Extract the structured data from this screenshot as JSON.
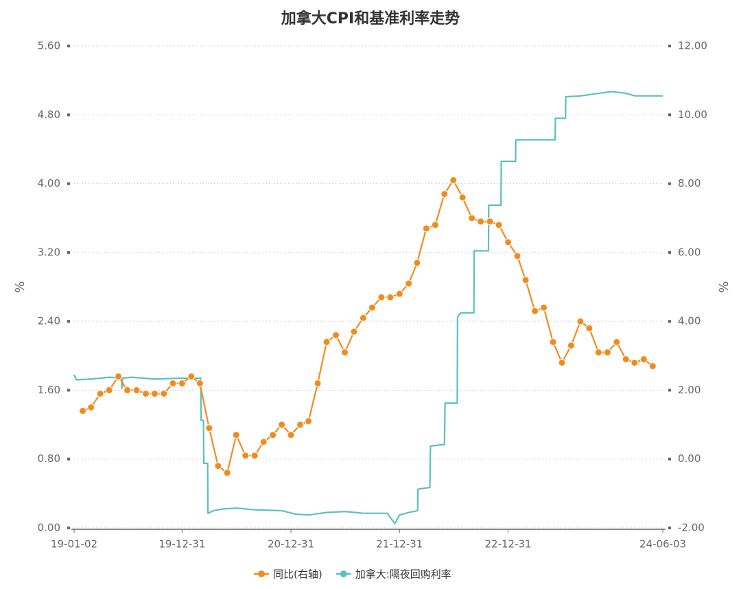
{
  "chart_data": {
    "type": "line",
    "title": "加拿大CPI和基准利率走势",
    "y_label": "%",
    "y2_label": "%",
    "xlim": [
      "19-01-02",
      "24-06-03"
    ],
    "xticks": [
      "19-01-02",
      "19-12-31",
      "20-12-31",
      "21-12-31",
      "22-12-31",
      "24-06-03"
    ],
    "ylim": [
      0,
      5.6
    ],
    "yticks": [
      {
        "value": 0,
        "label": "0.00"
      },
      {
        "value": 0.8,
        "label": "0.80"
      },
      {
        "value": 1.6,
        "label": "1.60"
      },
      {
        "value": 2.4,
        "label": "2.40"
      },
      {
        "value": 3.2,
        "label": "3.20"
      },
      {
        "value": 4,
        "label": "4.00"
      },
      {
        "value": 4.8,
        "label": "4.80"
      },
      {
        "value": 5.6,
        "label": "5.60"
      }
    ],
    "y2lim": [
      -2,
      12
    ],
    "y2ticks": [
      {
        "value": -2,
        "label": "-2.00"
      },
      {
        "value": 0,
        "label": "0.00"
      },
      {
        "value": 2,
        "label": "2.00"
      },
      {
        "value": 4,
        "label": "4.00"
      },
      {
        "value": 6,
        "label": "6.00"
      },
      {
        "value": 8,
        "label": "8.00"
      },
      {
        "value": 10,
        "label": "10.00"
      },
      {
        "value": 12,
        "label": "12.00"
      }
    ],
    "grid": true,
    "legend": "bottom",
    "series": [
      {
        "name": "同比(右轴)",
        "color": "#f08c1e",
        "axis": "y2",
        "markers": true,
        "x": [
          "19-01-31",
          "19-02-28",
          "19-03-31",
          "19-04-30",
          "19-05-31",
          "19-06-30",
          "19-07-31",
          "19-08-31",
          "19-09-30",
          "19-10-31",
          "19-11-30",
          "19-12-31",
          "20-01-31",
          "20-02-29",
          "20-03-31",
          "20-04-30",
          "20-05-31",
          "20-06-30",
          "20-07-31",
          "20-08-31",
          "20-09-30",
          "20-10-31",
          "20-11-30",
          "20-12-31",
          "21-01-31",
          "21-02-28",
          "21-03-31",
          "21-04-30",
          "21-05-31",
          "21-06-30",
          "21-07-31",
          "21-08-31",
          "21-09-30",
          "21-10-31",
          "21-11-30",
          "21-12-31",
          "22-01-31",
          "22-02-28",
          "22-03-31",
          "22-04-30",
          "22-05-31",
          "22-06-30",
          "22-07-31",
          "22-08-31",
          "22-09-30",
          "22-10-31",
          "22-11-30",
          "22-12-31",
          "23-01-31",
          "23-02-28",
          "23-03-31",
          "23-04-30",
          "23-05-31",
          "23-06-30",
          "23-07-31",
          "23-08-31",
          "23-09-30",
          "23-10-31",
          "23-11-30",
          "23-12-31",
          "24-01-31",
          "24-02-29",
          "24-03-31",
          "24-04-30"
        ],
        "values": [
          1.4,
          1.5,
          1.9,
          2.0,
          2.4,
          2.0,
          2.0,
          1.9,
          1.9,
          1.9,
          2.2,
          2.2,
          2.4,
          2.2,
          0.9,
          -0.2,
          -0.4,
          0.7,
          0.1,
          0.1,
          0.5,
          0.7,
          1.0,
          0.7,
          1.0,
          1.1,
          2.2,
          3.4,
          3.6,
          3.1,
          3.7,
          4.1,
          4.4,
          4.7,
          4.7,
          4.8,
          5.1,
          5.7,
          6.7,
          6.8,
          7.7,
          8.1,
          7.6,
          7.0,
          6.9,
          6.9,
          6.8,
          6.3,
          5.9,
          5.2,
          4.3,
          4.4,
          3.4,
          2.8,
          3.3,
          4.0,
          3.8,
          3.1,
          3.1,
          3.4,
          2.9,
          2.8,
          2.9,
          2.7
        ]
      },
      {
        "name": "加拿大:隔夜回购利率",
        "color": "#5bbfbf",
        "axis": "y",
        "markers": false,
        "x": [
          "19-01-02",
          "19-01-10",
          "19-03-01",
          "19-05-01",
          "19-06-10",
          "19-06-12",
          "19-06-14",
          "19-07-15",
          "19-10-01",
          "19-12-31",
          "20-03-03",
          "20-03-04",
          "20-03-12",
          "20-03-13",
          "20-03-26",
          "20-03-27",
          "20-04-15",
          "20-05-15",
          "20-07-01",
          "20-09-01",
          "20-12-01",
          "21-01-15",
          "21-03-01",
          "21-05-01",
          "21-07-01",
          "21-09-01",
          "21-11-20",
          "21-12-15",
          "21-12-31",
          "22-02-01",
          "22-03-02",
          "22-03-03",
          "22-04-12",
          "22-04-14",
          "22-05-31",
          "22-06-02",
          "22-07-13",
          "22-07-14",
          "22-07-25",
          "22-09-07",
          "22-09-08",
          "22-10-26",
          "22-10-27",
          "22-12-07",
          "22-12-08",
          "23-01-25",
          "23-01-26",
          "23-06-07",
          "23-06-08",
          "23-07-12",
          "23-07-13",
          "23-09-01",
          "23-11-01",
          "23-12-15",
          "24-02-01",
          "24-03-01",
          "24-06-03"
        ],
        "values": [
          1.78,
          1.72,
          1.73,
          1.75,
          1.74,
          1.62,
          1.74,
          1.75,
          1.73,
          1.74,
          1.74,
          1.25,
          1.25,
          0.75,
          0.75,
          0.17,
          0.2,
          0.22,
          0.23,
          0.21,
          0.2,
          0.16,
          0.15,
          0.18,
          0.19,
          0.17,
          0.17,
          0.05,
          0.15,
          0.18,
          0.2,
          0.45,
          0.47,
          0.95,
          0.97,
          1.45,
          1.45,
          2.45,
          2.5,
          2.5,
          3.22,
          3.22,
          3.75,
          3.75,
          4.26,
          4.26,
          4.51,
          4.51,
          4.76,
          4.76,
          5.01,
          5.02,
          5.05,
          5.07,
          5.05,
          5.02,
          5.02
        ]
      }
    ]
  }
}
